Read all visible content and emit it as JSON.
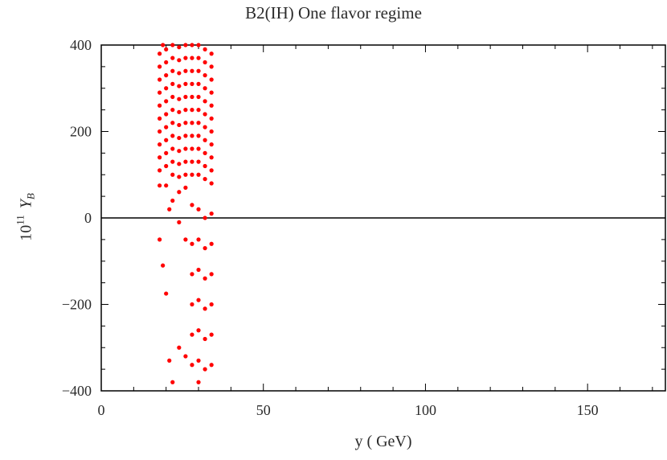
{
  "chart_data": {
    "type": "scatter",
    "title": "B2(IH) One flavor regime",
    "xlabel": "y ( GeV)",
    "ylabel": {
      "prefix": "10",
      "power": "11",
      "symbol": "Y",
      "subscript": "B"
    },
    "xlim": [
      0,
      174
    ],
    "ylim": [
      -400,
      400
    ],
    "xticks": [
      0,
      50,
      100,
      150
    ],
    "xtick_labels": [
      "0",
      "50",
      "100",
      "150"
    ],
    "yticks": [
      -400,
      -200,
      0,
      200,
      400
    ],
    "ytick_labels": [
      "−400",
      "−200",
      "0",
      "200",
      "400"
    ],
    "reference_line_y": 0,
    "marker_color": "#ff0000",
    "series": [
      {
        "name": "",
        "points": [
          [
            18,
            380
          ],
          [
            18,
            350
          ],
          [
            18,
            320
          ],
          [
            18,
            290
          ],
          [
            18,
            260
          ],
          [
            18,
            230
          ],
          [
            18,
            200
          ],
          [
            18,
            170
          ],
          [
            18,
            140
          ],
          [
            18,
            110
          ],
          [
            18,
            75
          ],
          [
            18,
            -50
          ],
          [
            19,
            400
          ],
          [
            19,
            -110
          ],
          [
            20,
            390
          ],
          [
            20,
            360
          ],
          [
            20,
            330
          ],
          [
            20,
            300
          ],
          [
            20,
            270
          ],
          [
            20,
            240
          ],
          [
            20,
            210
          ],
          [
            20,
            180
          ],
          [
            20,
            150
          ],
          [
            20,
            120
          ],
          [
            20,
            75
          ],
          [
            20,
            -175
          ],
          [
            21,
            20
          ],
          [
            21,
            -330
          ],
          [
            22,
            400
          ],
          [
            22,
            370
          ],
          [
            22,
            340
          ],
          [
            22,
            310
          ],
          [
            22,
            280
          ],
          [
            22,
            250
          ],
          [
            22,
            220
          ],
          [
            22,
            190
          ],
          [
            22,
            160
          ],
          [
            22,
            130
          ],
          [
            22,
            100
          ],
          [
            22,
            40
          ],
          [
            22,
            -380
          ],
          [
            24,
            395
          ],
          [
            24,
            365
          ],
          [
            24,
            335
          ],
          [
            24,
            305
          ],
          [
            24,
            275
          ],
          [
            24,
            245
          ],
          [
            24,
            215
          ],
          [
            24,
            185
          ],
          [
            24,
            155
          ],
          [
            24,
            125
          ],
          [
            24,
            95
          ],
          [
            24,
            60
          ],
          [
            24,
            -10
          ],
          [
            24,
            -300
          ],
          [
            26,
            400
          ],
          [
            26,
            370
          ],
          [
            26,
            340
          ],
          [
            26,
            310
          ],
          [
            26,
            280
          ],
          [
            26,
            250
          ],
          [
            26,
            220
          ],
          [
            26,
            190
          ],
          [
            26,
            160
          ],
          [
            26,
            130
          ],
          [
            26,
            100
          ],
          [
            26,
            70
          ],
          [
            26,
            -50
          ],
          [
            26,
            -320
          ],
          [
            28,
            400
          ],
          [
            28,
            370
          ],
          [
            28,
            340
          ],
          [
            28,
            310
          ],
          [
            28,
            280
          ],
          [
            28,
            250
          ],
          [
            28,
            220
          ],
          [
            28,
            190
          ],
          [
            28,
            160
          ],
          [
            28,
            130
          ],
          [
            28,
            100
          ],
          [
            28,
            30
          ],
          [
            28,
            -60
          ],
          [
            28,
            -130
          ],
          [
            28,
            -200
          ],
          [
            28,
            -270
          ],
          [
            28,
            -340
          ],
          [
            30,
            400
          ],
          [
            30,
            370
          ],
          [
            30,
            340
          ],
          [
            30,
            310
          ],
          [
            30,
            280
          ],
          [
            30,
            250
          ],
          [
            30,
            220
          ],
          [
            30,
            190
          ],
          [
            30,
            160
          ],
          [
            30,
            130
          ],
          [
            30,
            100
          ],
          [
            30,
            20
          ],
          [
            30,
            -50
          ],
          [
            30,
            -120
          ],
          [
            30,
            -190
          ],
          [
            30,
            -260
          ],
          [
            30,
            -330
          ],
          [
            30,
            -380
          ],
          [
            32,
            390
          ],
          [
            32,
            360
          ],
          [
            32,
            330
          ],
          [
            32,
            300
          ],
          [
            32,
            270
          ],
          [
            32,
            240
          ],
          [
            32,
            210
          ],
          [
            32,
            180
          ],
          [
            32,
            150
          ],
          [
            32,
            120
          ],
          [
            32,
            90
          ],
          [
            32,
            0
          ],
          [
            32,
            -70
          ],
          [
            32,
            -140
          ],
          [
            32,
            -210
          ],
          [
            32,
            -280
          ],
          [
            32,
            -350
          ],
          [
            34,
            380
          ],
          [
            34,
            350
          ],
          [
            34,
            320
          ],
          [
            34,
            290
          ],
          [
            34,
            260
          ],
          [
            34,
            230
          ],
          [
            34,
            200
          ],
          [
            34,
            170
          ],
          [
            34,
            140
          ],
          [
            34,
            110
          ],
          [
            34,
            80
          ],
          [
            34,
            10
          ],
          [
            34,
            -60
          ],
          [
            34,
            -130
          ],
          [
            34,
            -200
          ],
          [
            34,
            -270
          ],
          [
            34,
            -340
          ]
        ]
      }
    ]
  }
}
